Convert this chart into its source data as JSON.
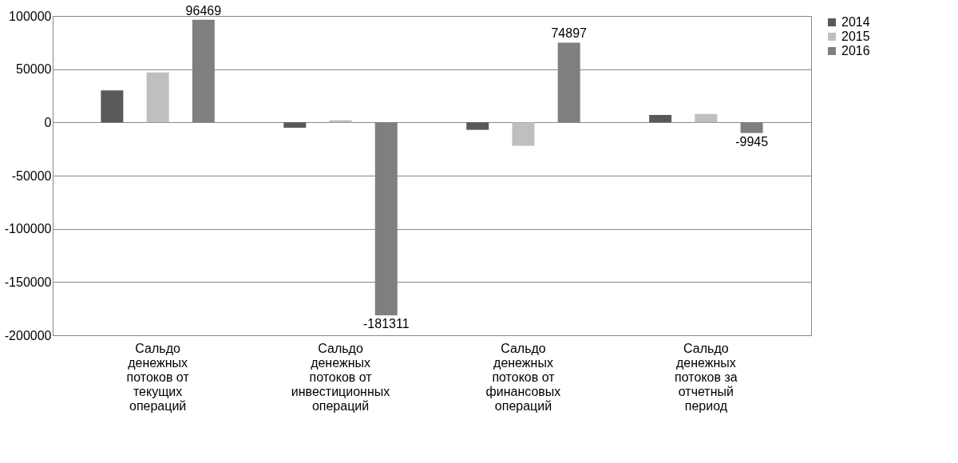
{
  "chart_data": {
    "type": "bar",
    "categories": [
      "Сальдо денежных потоков от текущих операций",
      "Сальдо денежных потоков от инвестиционных операций",
      "Сальдо денежных потоков от финансовых операций",
      "Сальдо денежных потоков за отчетный период"
    ],
    "series": [
      {
        "name": "2014",
        "color": "#595959",
        "values": [
          30000,
          -5000,
          -7000,
          7000
        ]
      },
      {
        "name": "2015",
        "color": "#bfbfbf",
        "values": [
          47000,
          2000,
          -22000,
          8000
        ]
      },
      {
        "name": "2016",
        "color": "#7f7f7f",
        "values": [
          96469,
          -181311,
          74897,
          -9945
        ],
        "value_labels": [
          "96469",
          "-181311",
          "74897",
          "-9945"
        ]
      }
    ],
    "ylim": [
      -200000,
      100000
    ],
    "yticks": [
      -200000,
      -150000,
      -100000,
      -50000,
      0,
      50000,
      100000
    ],
    "grid": "y",
    "legend": "right"
  }
}
